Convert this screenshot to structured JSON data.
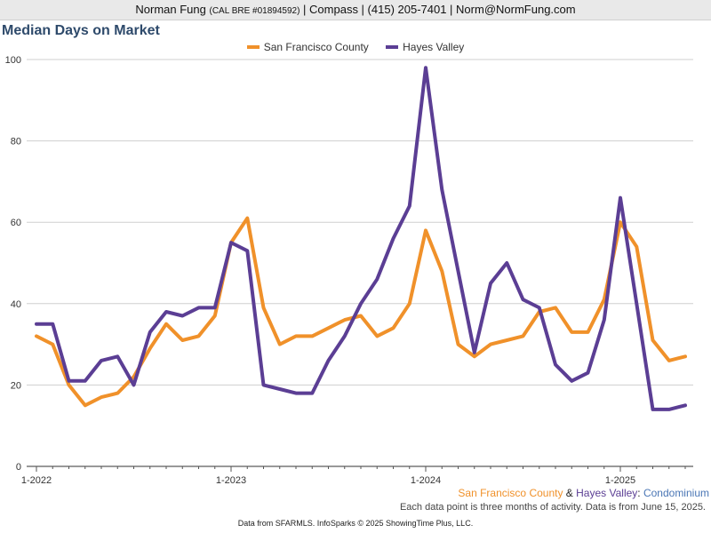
{
  "header": {
    "name": "Norman Fung",
    "license": "(CAL BRE #01894592)",
    "rest": "| Compass | (415) 205-7401 | Norm@NormFung.com"
  },
  "title": "Median Days on Market",
  "caption": {
    "area1": "San Francisco County",
    "amp": " & ",
    "area2": "Hayes Valley",
    "colon": ": ",
    "type": "Condominium",
    "note": "Each data point is three months of activity. Data is from June 15, 2025."
  },
  "footer": "Data from SFARMLS. InfoSparks © 2025 ShowingTime Plus, LLC.",
  "colors": {
    "sf": "#f0912a",
    "hv": "#5b3e94",
    "type": "#4a76b5"
  },
  "chart_data": {
    "type": "line",
    "ylim": [
      0,
      100
    ],
    "yticks": [
      0,
      20,
      40,
      60,
      80,
      100
    ],
    "grid": true,
    "legend_position": "top-center",
    "x_tick_labels": [
      "1-2022",
      "1-2023",
      "1-2024",
      "1-2025"
    ],
    "x": [
      "1-2022",
      "2-2022",
      "3-2022",
      "4-2022",
      "5-2022",
      "6-2022",
      "7-2022",
      "8-2022",
      "9-2022",
      "10-2022",
      "11-2022",
      "12-2022",
      "1-2023",
      "2-2023",
      "3-2023",
      "4-2023",
      "5-2023",
      "6-2023",
      "7-2023",
      "8-2023",
      "9-2023",
      "10-2023",
      "11-2023",
      "12-2023",
      "1-2024",
      "2-2024",
      "3-2024",
      "4-2024",
      "5-2024",
      "6-2024",
      "7-2024",
      "8-2024",
      "9-2024",
      "10-2024",
      "11-2024",
      "12-2024",
      "1-2025",
      "2-2025",
      "3-2025",
      "4-2025",
      "5-2025"
    ],
    "series": [
      {
        "name": "San Francisco County",
        "values": [
          32,
          30,
          20,
          15,
          17,
          18,
          22,
          29,
          35,
          31,
          32,
          37,
          55,
          61,
          39,
          30,
          32,
          32,
          34,
          36,
          37,
          32,
          34,
          40,
          58,
          48,
          30,
          27,
          30,
          31,
          32,
          38,
          39,
          33,
          33,
          41,
          60,
          54,
          31,
          26,
          27
        ]
      },
      {
        "name": "Hayes Valley",
        "values": [
          35,
          35,
          21,
          21,
          26,
          27,
          20,
          33,
          38,
          37,
          39,
          39,
          55,
          53,
          20,
          19,
          18,
          18,
          26,
          32,
          40,
          46,
          56,
          64,
          98,
          68,
          48,
          28,
          45,
          50,
          41,
          39,
          25,
          21,
          23,
          36,
          66,
          40,
          14,
          14,
          15
        ]
      }
    ]
  }
}
